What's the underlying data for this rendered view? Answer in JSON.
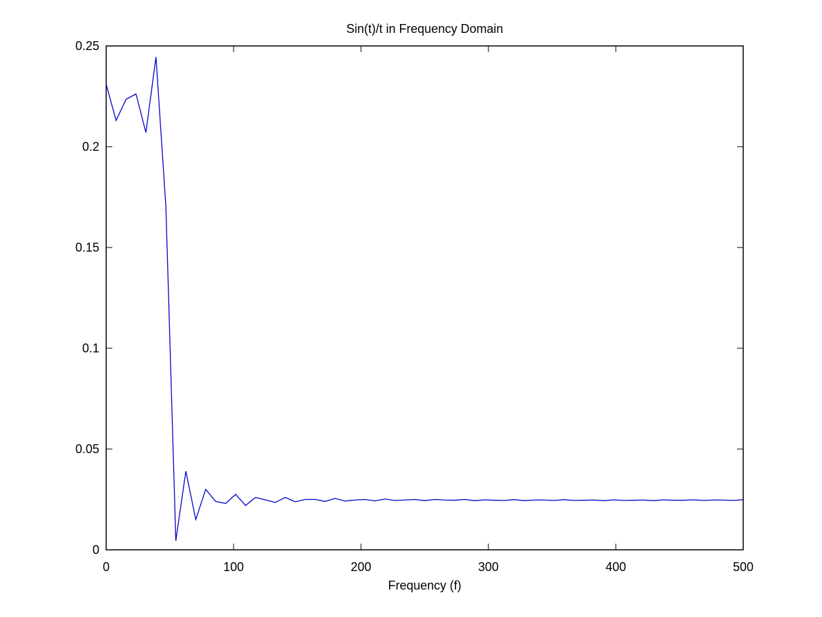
{
  "chart_data": {
    "type": "line",
    "title": "Sin(t)/t in Frequency Domain",
    "xlabel": "Frequency (f)",
    "ylabel": "",
    "xlim": [
      0,
      500
    ],
    "ylim": [
      0,
      0.25
    ],
    "xticks": [
      0,
      100,
      200,
      300,
      400,
      500
    ],
    "xtick_labels": [
      "0",
      "100",
      "200",
      "300",
      "400",
      "500"
    ],
    "yticks": [
      0,
      0.05,
      0.1,
      0.15,
      0.2,
      0.25
    ],
    "ytick_labels": [
      "0",
      "0.05",
      "0.1",
      "0.15",
      "0.2",
      "0.25"
    ],
    "grid": false,
    "line_color": "#0000cc",
    "series": [
      {
        "x": [
          0,
          7.8,
          15.6,
          23.4,
          31.2,
          39.1,
          46.9,
          54.7,
          62.5,
          70.3,
          78.1,
          85.9,
          93.8,
          101.6,
          109.4,
          117.2,
          125,
          132.8,
          140.6,
          148.4,
          156.3,
          164.1,
          171.9,
          179.7,
          187.5,
          195.3,
          203.1,
          210.9,
          218.8,
          226.6,
          234.4,
          242.2,
          250,
          257.8,
          265.6,
          273.4,
          281.3,
          289.1,
          296.9,
          304.7,
          312.5,
          320.3,
          328.1,
          335.9,
          343.8,
          351.6,
          359.4,
          367.2,
          375,
          382.8,
          390.6,
          398.4,
          406.3,
          414.1,
          421.9,
          429.7,
          437.5,
          445.3,
          453.1,
          460.9,
          468.8,
          476.6,
          484.4,
          492.2,
          500
        ],
        "y": [
          0.231,
          0.213,
          0.2235,
          0.2262,
          0.207,
          0.2445,
          0.17,
          0.0045,
          0.039,
          0.015,
          0.03,
          0.024,
          0.023,
          0.0275,
          0.022,
          0.026,
          0.0248,
          0.0235,
          0.026,
          0.0238,
          0.025,
          0.025,
          0.024,
          0.0255,
          0.0242,
          0.0247,
          0.025,
          0.0243,
          0.0252,
          0.0245,
          0.0247,
          0.025,
          0.0244,
          0.025,
          0.0247,
          0.0246,
          0.025,
          0.0244,
          0.0248,
          0.0246,
          0.0245,
          0.0249,
          0.0244,
          0.0247,
          0.0247,
          0.0245,
          0.0249,
          0.0245,
          0.0246,
          0.0247,
          0.0244,
          0.0248,
          0.0245,
          0.0246,
          0.0247,
          0.0244,
          0.0248,
          0.0246,
          0.0246,
          0.0248,
          0.0245,
          0.0247,
          0.0247,
          0.0245,
          0.0249
        ]
      }
    ]
  }
}
